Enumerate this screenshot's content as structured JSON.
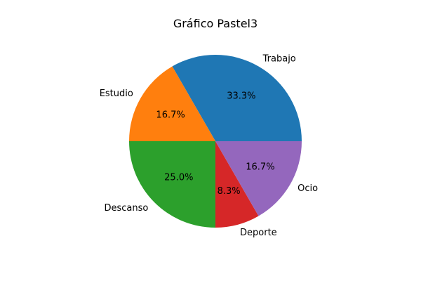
{
  "chart_data": {
    "type": "pie",
    "title": "Gráfico Pastel3",
    "categories": [
      "Trabajo",
      "Estudio",
      "Descanso",
      "Deporte",
      "Ocio"
    ],
    "values": [
      4,
      2,
      3,
      1,
      2
    ],
    "percent_labels": [
      "33.3%",
      "16.7%",
      "25.0%",
      "8.3%",
      "16.7%"
    ],
    "colors": [
      "#1f77b4",
      "#ff7f0e",
      "#2ca02c",
      "#d62728",
      "#9467bd"
    ],
    "start_angle_deg": 0,
    "direction": "counterclockwise",
    "legend": "none"
  }
}
